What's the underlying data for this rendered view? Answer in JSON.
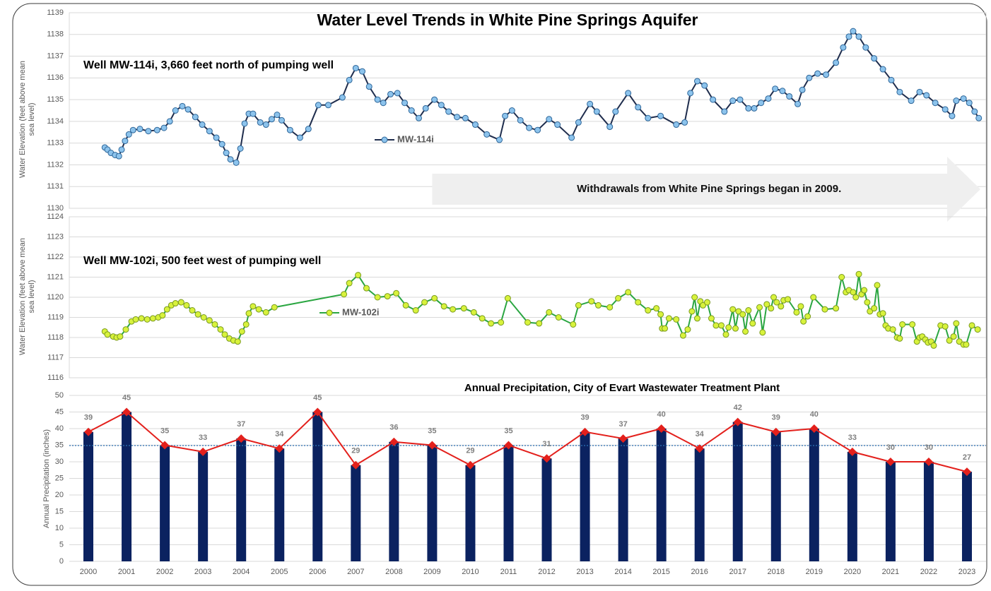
{
  "title": "Water Level Trends in White Pine Springs Aquifer",
  "chart_data": [
    {
      "type": "line",
      "title": "Well MW-114i, 3,660 feet north of pumping well",
      "ylabel": "Water Elevation (feet above mean sea level)",
      "xlim": [
        1999.5,
        2023.5
      ],
      "ylim": [
        1130,
        1139
      ],
      "yticks": [
        1130,
        1131,
        1132,
        1133,
        1134,
        1135,
        1136,
        1137,
        1138,
        1139
      ],
      "grid": true,
      "annotation": {
        "text": "Withdrawals from White Pine Springs began in 2009.",
        "x": 2009
      },
      "series": [
        {
          "name": "MW-114i",
          "color": "#1f2d4d",
          "marker_color": "#8cc3ec",
          "marker_edge": "#2e6699",
          "x": [
            2000.43,
            2000.5,
            2000.59,
            2000.7,
            2000.8,
            2000.87,
            2000.96,
            2001.06,
            2001.17,
            2001.35,
            2001.57,
            2001.8,
            2001.98,
            2002.13,
            2002.28,
            2002.46,
            2002.61,
            2002.8,
            2002.98,
            2003.17,
            2003.35,
            2003.5,
            2003.61,
            2003.72,
            2003.87,
            2003.98,
            2004.09,
            2004.2,
            2004.31,
            2004.5,
            2004.65,
            2004.8,
            2004.94,
            2005.06,
            2005.28,
            2005.54,
            2005.76,
            2006.02,
            2006.28,
            2006.65,
            2006.83,
            2007.0,
            2007.17,
            2007.35,
            2007.57,
            2007.72,
            2007.91,
            2008.09,
            2008.28,
            2008.46,
            2008.65,
            2008.83,
            2009.06,
            2009.24,
            2009.43,
            2009.65,
            2009.87,
            2010.13,
            2010.43,
            2010.76,
            2010.91,
            2011.09,
            2011.31,
            2011.54,
            2011.76,
            2012.06,
            2012.28,
            2012.65,
            2012.83,
            2013.13,
            2013.31,
            2013.65,
            2013.8,
            2014.13,
            2014.39,
            2014.65,
            2014.98,
            2015.39,
            2015.61,
            2015.76,
            2015.94,
            2016.13,
            2016.35,
            2016.65,
            2016.87,
            2017.06,
            2017.28,
            2017.43,
            2017.61,
            2017.8,
            2017.98,
            2018.17,
            2018.35,
            2018.57,
            2018.69,
            2018.87,
            2019.09,
            2019.31,
            2019.57,
            2019.76,
            2019.91,
            2020.02,
            2020.17,
            2020.35,
            2020.57,
            2020.8,
            2021.02,
            2021.24,
            2021.54,
            2021.76,
            2021.94,
            2022.17,
            2022.43,
            2022.61,
            2022.72,
            2022.91,
            2023.06,
            2023.2,
            2023.31
          ],
          "values": [
            1132.8,
            1132.7,
            1132.55,
            1132.45,
            1132.4,
            1132.7,
            1133.1,
            1133.4,
            1133.6,
            1133.65,
            1133.55,
            1133.6,
            1133.7,
            1134.0,
            1134.5,
            1134.7,
            1134.55,
            1134.2,
            1133.85,
            1133.55,
            1133.25,
            1132.95,
            1132.55,
            1132.25,
            1132.1,
            1132.75,
            1133.9,
            1134.35,
            1134.35,
            1133.95,
            1133.85,
            1134.1,
            1134.3,
            1134.05,
            1133.6,
            1133.25,
            1133.65,
            1134.75,
            1134.75,
            1135.1,
            1135.9,
            1136.45,
            1136.3,
            1135.6,
            1135.0,
            1134.85,
            1135.25,
            1135.3,
            1134.85,
            1134.5,
            1134.15,
            1134.6,
            1135.0,
            1134.75,
            1134.45,
            1134.2,
            1134.15,
            1133.85,
            1133.4,
            1133.15,
            1134.25,
            1134.5,
            1134.05,
            1133.7,
            1133.6,
            1134.1,
            1133.85,
            1133.25,
            1133.95,
            1134.8,
            1134.45,
            1133.75,
            1134.45,
            1135.3,
            1134.65,
            1134.15,
            1134.25,
            1133.85,
            1133.95,
            1135.3,
            1135.85,
            1135.65,
            1135.0,
            1134.45,
            1134.95,
            1135.0,
            1134.6,
            1134.6,
            1134.85,
            1135.05,
            1135.5,
            1135.4,
            1135.15,
            1134.8,
            1135.45,
            1136.0,
            1136.2,
            1136.15,
            1136.7,
            1137.4,
            1137.9,
            1138.15,
            1137.9,
            1137.4,
            1136.9,
            1136.4,
            1135.9,
            1135.35,
            1134.95,
            1135.35,
            1135.2,
            1134.85,
            1134.55,
            1134.25,
            1134.95,
            1135.05,
            1134.85,
            1134.45,
            1134.15
          ]
        }
      ]
    },
    {
      "type": "line",
      "title": "Well MW-102i, 500 feet west of pumping well",
      "ylabel": "Water Elevation (feet above mean sea level)",
      "xlim": [
        1999.5,
        2023.5
      ],
      "ylim": [
        1116,
        1124
      ],
      "yticks": [
        1116,
        1117,
        1118,
        1119,
        1120,
        1121,
        1122,
        1123,
        1124
      ],
      "grid": true,
      "series": [
        {
          "name": "MW-102i",
          "color": "#2aa641",
          "marker_color": "#d8f23c",
          "marker_edge": "#7a9a1e",
          "x": [
            2000.43,
            2000.5,
            2000.65,
            2000.74,
            2000.83,
            2000.98,
            2001.13,
            2001.24,
            2001.39,
            2001.54,
            2001.69,
            2001.83,
            2001.94,
            2002.06,
            2002.17,
            2002.28,
            2002.43,
            2002.57,
            2002.72,
            2002.87,
            2003.02,
            2003.17,
            2003.31,
            2003.46,
            2003.57,
            2003.69,
            2003.8,
            2003.91,
            2004.02,
            2004.13,
            2004.2,
            2004.31,
            2004.46,
            2004.65,
            2004.87,
            2006.69,
            2006.83,
            2007.06,
            2007.28,
            2007.57,
            2007.83,
            2008.06,
            2008.31,
            2008.57,
            2008.8,
            2009.06,
            2009.31,
            2009.54,
            2009.83,
            2010.09,
            2010.31,
            2010.54,
            2010.8,
            2010.98,
            2011.5,
            2011.8,
            2012.06,
            2012.31,
            2012.69,
            2012.83,
            2013.17,
            2013.35,
            2013.65,
            2013.87,
            2014.13,
            2014.39,
            2014.65,
            2014.87,
            2014.98,
            2015.02,
            2015.09,
            2015.2,
            2015.39,
            2015.57,
            2015.69,
            2015.8,
            2015.87,
            2015.94,
            2016.02,
            2016.09,
            2016.2,
            2016.31,
            2016.43,
            2016.57,
            2016.69,
            2016.76,
            2016.87,
            2016.94,
            2017.02,
            2017.13,
            2017.2,
            2017.28,
            2017.39,
            2017.57,
            2017.65,
            2017.76,
            2017.87,
            2017.94,
            2018.02,
            2018.13,
            2018.2,
            2018.31,
            2018.54,
            2018.65,
            2018.72,
            2018.83,
            2018.98,
            2019.28,
            2019.57,
            2019.72,
            2019.83,
            2019.91,
            2020.02,
            2020.09,
            2020.17,
            2020.24,
            2020.31,
            2020.39,
            2020.46,
            2020.57,
            2020.65,
            2020.72,
            2020.8,
            2020.87,
            2020.94,
            2021.06,
            2021.17,
            2021.24,
            2021.31,
            2021.57,
            2021.69,
            2021.76,
            2021.83,
            2021.91,
            2021.98,
            2022.06,
            2022.13,
            2022.31,
            2022.43,
            2022.54,
            2022.65,
            2022.72,
            2022.8,
            2022.91,
            2022.98,
            2023.13,
            2023.28
          ],
          "values": [
            1118.3,
            1118.15,
            1118.05,
            1118.0,
            1118.05,
            1118.4,
            1118.8,
            1118.9,
            1118.95,
            1118.9,
            1118.95,
            1119.0,
            1119.1,
            1119.4,
            1119.6,
            1119.7,
            1119.75,
            1119.6,
            1119.35,
            1119.15,
            1119.0,
            1118.85,
            1118.65,
            1118.4,
            1118.15,
            1117.95,
            1117.85,
            1117.8,
            1118.3,
            1118.65,
            1119.2,
            1119.55,
            1119.4,
            1119.25,
            1119.5,
            1120.15,
            1120.7,
            1121.1,
            1120.45,
            1120.0,
            1120.05,
            1120.2,
            1119.6,
            1119.35,
            1119.75,
            1119.95,
            1119.55,
            1119.4,
            1119.45,
            1119.25,
            1118.95,
            1118.7,
            1118.75,
            1119.95,
            1118.75,
            1118.7,
            1119.25,
            1119.0,
            1118.65,
            1119.6,
            1119.8,
            1119.6,
            1119.5,
            1119.95,
            1120.25,
            1119.75,
            1119.35,
            1119.45,
            1119.15,
            1118.45,
            1118.45,
            1118.95,
            1118.9,
            1118.1,
            1118.4,
            1119.3,
            1120.0,
            1118.95,
            1119.8,
            1119.6,
            1119.75,
            1118.95,
            1118.6,
            1118.6,
            1118.15,
            1118.5,
            1119.4,
            1118.45,
            1119.3,
            1119.15,
            1118.3,
            1119.35,
            1118.7,
            1119.5,
            1118.25,
            1119.65,
            1119.45,
            1120.0,
            1119.75,
            1119.55,
            1119.85,
            1119.9,
            1119.25,
            1119.55,
            1118.8,
            1119.05,
            1120.0,
            1119.4,
            1119.45,
            1121.0,
            1120.25,
            1120.35,
            1120.25,
            1120.0,
            1121.15,
            1120.15,
            1120.35,
            1119.75,
            1119.3,
            1119.45,
            1120.6,
            1119.15,
            1119.2,
            1118.6,
            1118.45,
            1118.4,
            1118.0,
            1117.95,
            1118.65,
            1118.65,
            1117.8,
            1118.0,
            1118.05,
            1117.9,
            1117.75,
            1117.8,
            1117.6,
            1118.6,
            1118.55,
            1117.85,
            1118.05,
            1118.7,
            1117.8,
            1117.65,
            1117.65,
            1118.6,
            1118.4
          ]
        }
      ]
    },
    {
      "type": "bar",
      "title": "Annual Precipitation, City of Evart Wastewater Treatment Plant",
      "ylabel": "Annual Precipitation (inches)",
      "categories": [
        "2000",
        "2001",
        "2002",
        "2003",
        "2004",
        "2005",
        "2006",
        "2007",
        "2008",
        "2009",
        "2010",
        "2011",
        "2012",
        "2013",
        "2014",
        "2015",
        "2016",
        "2017",
        "2018",
        "2019",
        "2020",
        "2021",
        "2022",
        "2023"
      ],
      "values": [
        39,
        45,
        35,
        33,
        37,
        34,
        45,
        29,
        36,
        35,
        29,
        35,
        31,
        39,
        37,
        40,
        34,
        42,
        39,
        40,
        33,
        30,
        30,
        27
      ],
      "color": "#0b2260",
      "line_color": "#e3201c",
      "reference_line": 34.9,
      "reference_color": "#2e75b6",
      "ylim": [
        0,
        50
      ],
      "yticks": [
        0,
        5,
        10,
        15,
        20,
        25,
        30,
        35,
        40,
        45,
        50
      ],
      "grid": true
    }
  ]
}
